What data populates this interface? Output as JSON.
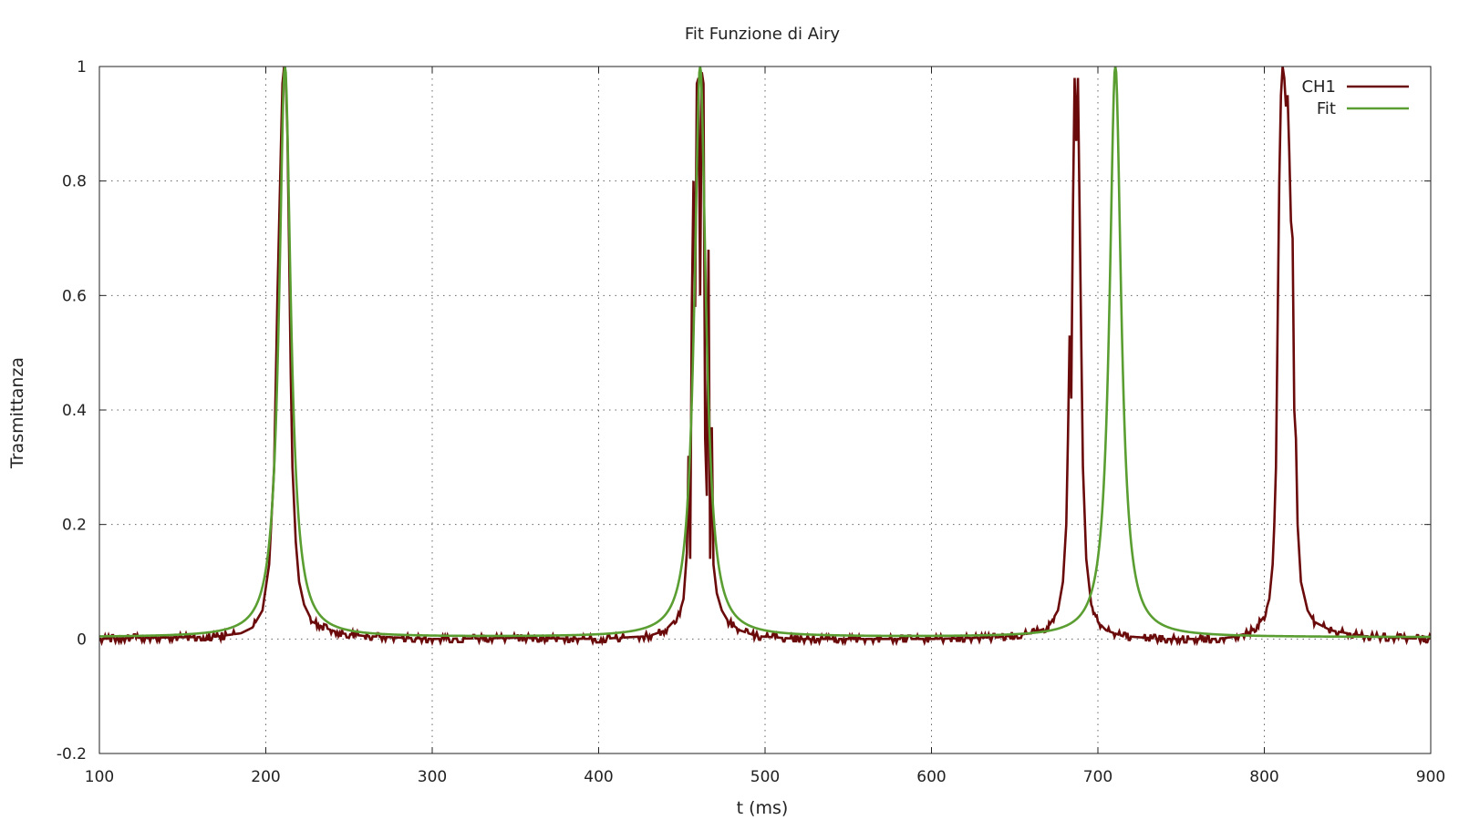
{
  "chart_data": {
    "type": "line",
    "title": "Fit Funzione di Airy",
    "xlabel": "t (ms)",
    "ylabel": "Trasmittanza",
    "xlim": [
      100,
      900
    ],
    "ylim": [
      -0.2,
      1
    ],
    "xticks": [
      100,
      200,
      300,
      400,
      500,
      600,
      700,
      800,
      900
    ],
    "yticks": [
      -0.2,
      0,
      0.2,
      0.4,
      0.6,
      0.8,
      1
    ],
    "ytick_labels": [
      "-0.2",
      "0",
      "0.2",
      "0.4",
      "0.6",
      "0.8",
      "1"
    ],
    "xtick_labels": [
      "100",
      "200",
      "300",
      "400",
      "500",
      "600",
      "700",
      "800",
      "900"
    ],
    "grid": true,
    "legend_position": "top-right",
    "series": [
      {
        "name": "CH1",
        "color": "#6b0a0a",
        "points": [
          [
            100,
            0
          ],
          [
            120,
            0.002
          ],
          [
            150,
            0.003
          ],
          [
            170,
            0.004
          ],
          [
            185,
            0.01
          ],
          [
            192,
            0.02
          ],
          [
            198,
            0.05
          ],
          [
            202,
            0.13
          ],
          [
            205,
            0.3
          ],
          [
            207,
            0.6
          ],
          [
            209,
            0.85
          ],
          [
            210,
            0.97
          ],
          [
            211,
            1
          ],
          [
            212,
            0.98
          ],
          [
            213,
            0.88
          ],
          [
            214,
            0.68
          ],
          [
            215,
            0.46
          ],
          [
            216,
            0.3
          ],
          [
            218,
            0.17
          ],
          [
            220,
            0.1
          ],
          [
            223,
            0.06
          ],
          [
            228,
            0.03
          ],
          [
            235,
            0.02
          ],
          [
            245,
            0.01
          ],
          [
            260,
            0.005
          ],
          [
            300,
            0
          ],
          [
            350,
            0.002
          ],
          [
            400,
            0
          ],
          [
            430,
            0.005
          ],
          [
            440,
            0.015
          ],
          [
            448,
            0.04
          ],
          [
            451,
            0.07
          ],
          [
            453,
            0.15
          ],
          [
            454,
            0.32
          ],
          [
            455,
            0.14
          ],
          [
            456,
            0.58
          ],
          [
            457,
            0.8
          ],
          [
            458,
            0.58
          ],
          [
            459,
            0.97
          ],
          [
            460,
            0.98
          ],
          [
            461,
            0.6
          ],
          [
            462,
            0.99
          ],
          [
            463,
            0.97
          ],
          [
            464,
            0.35
          ],
          [
            465,
            0.25
          ],
          [
            466,
            0.68
          ],
          [
            467,
            0.14
          ],
          [
            468,
            0.37
          ],
          [
            469,
            0.13
          ],
          [
            471,
            0.08
          ],
          [
            474,
            0.05
          ],
          [
            478,
            0.03
          ],
          [
            485,
            0.015
          ],
          [
            495,
            0.005
          ],
          [
            520,
            0
          ],
          [
            560,
            0
          ],
          [
            600,
            0
          ],
          [
            640,
            0.003
          ],
          [
            660,
            0.01
          ],
          [
            670,
            0.02
          ],
          [
            676,
            0.05
          ],
          [
            679,
            0.1
          ],
          [
            681,
            0.2
          ],
          [
            682,
            0.35
          ],
          [
            683,
            0.53
          ],
          [
            684,
            0.42
          ],
          [
            685,
            0.75
          ],
          [
            686,
            0.98
          ],
          [
            687,
            0.87
          ],
          [
            688,
            0.98
          ],
          [
            689,
            0.75
          ],
          [
            690,
            0.52
          ],
          [
            691,
            0.3
          ],
          [
            693,
            0.14
          ],
          [
            696,
            0.06
          ],
          [
            700,
            0.03
          ],
          [
            705,
            0.015
          ],
          [
            715,
            0.005
          ],
          [
            740,
            0
          ],
          [
            770,
            0
          ],
          [
            780,
            0.003
          ],
          [
            790,
            0.01
          ],
          [
            795,
            0.02
          ],
          [
            800,
            0.04
          ],
          [
            803,
            0.07
          ],
          [
            805,
            0.13
          ],
          [
            806,
            0.2
          ],
          [
            807,
            0.3
          ],
          [
            808,
            0.55
          ],
          [
            809,
            0.8
          ],
          [
            810,
            0.95
          ],
          [
            811,
            1
          ],
          [
            812,
            0.98
          ],
          [
            813,
            0.93
          ],
          [
            814,
            0.95
          ],
          [
            815,
            0.85
          ],
          [
            816,
            0.73
          ],
          [
            817,
            0.7
          ],
          [
            818,
            0.4
          ],
          [
            819,
            0.35
          ],
          [
            820,
            0.2
          ],
          [
            822,
            0.1
          ],
          [
            826,
            0.05
          ],
          [
            830,
            0.03
          ],
          [
            840,
            0.015
          ],
          [
            860,
            0.005
          ],
          [
            880,
            0.002
          ],
          [
            900,
            0
          ]
        ]
      },
      {
        "name": "Fit",
        "color": "#5a9e32",
        "peaks": [
          211.5,
          461,
          710.5
        ],
        "peak_height": 1,
        "baseline": 0.003
      }
    ]
  }
}
